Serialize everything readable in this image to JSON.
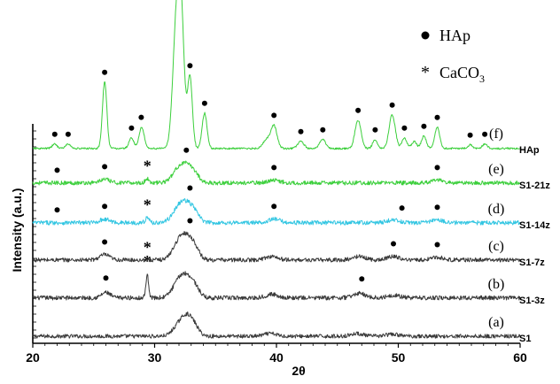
{
  "chart_data": {
    "type": "line",
    "xlabel": "2θ",
    "ylabel": "Intensity (a.u.)",
    "xlim": [
      20,
      60
    ],
    "xticks": [
      20,
      30,
      40,
      50,
      60
    ],
    "grid": false,
    "legend": [
      {
        "symbol": "●",
        "name": "HAp"
      },
      {
        "symbol": "*",
        "name": "CaCO",
        "subscript": "3"
      }
    ],
    "series": [
      {
        "name": "S1",
        "letter": "(a)",
        "color": "#3a3a3a",
        "baseline": 3.0,
        "noise": 2.2,
        "peaks": [
          [
            32.0,
            12,
            0.5
          ],
          [
            32.7,
            18,
            0.45
          ],
          [
            33.3,
            8,
            0.4
          ],
          [
            39.5,
            3,
            0.5
          ],
          [
            46.6,
            3,
            0.5
          ],
          [
            49.5,
            2,
            0.6
          ]
        ],
        "hap_markers": [],
        "caco3_markers": []
      },
      {
        "name": "S1-3z",
        "letter": "(b)",
        "color": "#3a3a3a",
        "baseline": 3.4,
        "noise": 2.4,
        "peaks": [
          [
            26.0,
            6,
            0.35
          ],
          [
            29.4,
            25,
            0.12
          ],
          [
            31.9,
            14,
            0.5
          ],
          [
            32.6,
            20,
            0.5
          ],
          [
            33.3,
            10,
            0.4
          ],
          [
            39.6,
            4,
            0.5
          ],
          [
            46.8,
            5,
            0.5
          ],
          [
            49.6,
            3,
            0.5
          ]
        ],
        "hap_markers": [
          26.0,
          47.0
        ],
        "caco3_markers": [
          29.4
        ]
      },
      {
        "name": "S1-7z",
        "letter": "(c)",
        "color": "#3a3a3a",
        "baseline": 3.2,
        "noise": 2.3,
        "peaks": [
          [
            25.9,
            6,
            0.4
          ],
          [
            31.9,
            15,
            0.5
          ],
          [
            32.6,
            22,
            0.5
          ],
          [
            33.3,
            11,
            0.4
          ],
          [
            39.6,
            4,
            0.5
          ],
          [
            46.8,
            4,
            0.5
          ],
          [
            49.6,
            4,
            0.5
          ],
          [
            53.2,
            3,
            0.5
          ]
        ],
        "hap_markers": [
          25.9,
          32.9,
          49.6,
          53.2
        ],
        "caco3_markers": [
          29.4
        ]
      },
      {
        "name": "S1-14z",
        "letter": "(d)",
        "color": "#33c6e2",
        "baseline": 3.3,
        "noise": 2.4,
        "peaks": [
          [
            25.9,
            4,
            0.4
          ],
          [
            29.4,
            6,
            0.15
          ],
          [
            31.9,
            13,
            0.5
          ],
          [
            32.6,
            18,
            0.5
          ],
          [
            33.3,
            9,
            0.4
          ],
          [
            39.8,
            4,
            0.5
          ],
          [
            49.6,
            3,
            0.5
          ],
          [
            53.2,
            3,
            0.5
          ]
        ],
        "hap_markers": [
          22.0,
          25.9,
          32.9,
          39.8,
          50.3,
          53.2
        ],
        "caco3_markers": [
          29.4
        ]
      },
      {
        "name": "S1-21z",
        "letter": "(e)",
        "color": "#3ccf3c",
        "baseline": 3.3,
        "noise": 2.3,
        "peaks": [
          [
            25.9,
            4,
            0.4
          ],
          [
            29.4,
            5,
            0.15
          ],
          [
            31.9,
            12,
            0.5
          ],
          [
            32.6,
            16,
            0.5
          ],
          [
            33.3,
            8,
            0.4
          ],
          [
            39.8,
            3,
            0.5
          ],
          [
            53.2,
            3,
            0.5
          ]
        ],
        "hap_markers": [
          22.0,
          25.9,
          32.6,
          39.8,
          53.2
        ],
        "caco3_markers": [
          29.4
        ]
      },
      {
        "name": "HAp",
        "letter": "(f)",
        "color": "#3ccf3c",
        "baseline": 2.2,
        "noise": 1.0,
        "peaks": [
          [
            21.8,
            5,
            0.2
          ],
          [
            22.9,
            5,
            0.2
          ],
          [
            25.9,
            75,
            0.18
          ],
          [
            28.1,
            12,
            0.2
          ],
          [
            28.9,
            15,
            0.2
          ],
          [
            29.0,
            10,
            0.2
          ],
          [
            31.8,
            140,
            0.3
          ],
          [
            32.2,
            120,
            0.25
          ],
          [
            32.9,
            80,
            0.2
          ],
          [
            34.1,
            40,
            0.2
          ],
          [
            39.2,
            10,
            0.3
          ],
          [
            39.8,
            25,
            0.25
          ],
          [
            42.0,
            8,
            0.25
          ],
          [
            43.8,
            10,
            0.25
          ],
          [
            46.7,
            32,
            0.25
          ],
          [
            48.1,
            10,
            0.2
          ],
          [
            49.5,
            38,
            0.25
          ],
          [
            50.5,
            12,
            0.2
          ],
          [
            51.3,
            8,
            0.2
          ],
          [
            52.1,
            14,
            0.2
          ],
          [
            53.2,
            24,
            0.2
          ],
          [
            55.9,
            4,
            0.2
          ],
          [
            57.1,
            5,
            0.2
          ]
        ],
        "hap_markers": [
          21.8,
          22.9,
          25.9,
          28.1,
          28.9,
          31.8,
          32.2,
          32.9,
          34.1,
          39.8,
          42.0,
          43.8,
          46.7,
          48.1,
          49.5,
          50.5,
          52.1,
          53.2,
          55.9,
          57.1
        ],
        "caco3_markers": []
      }
    ]
  }
}
